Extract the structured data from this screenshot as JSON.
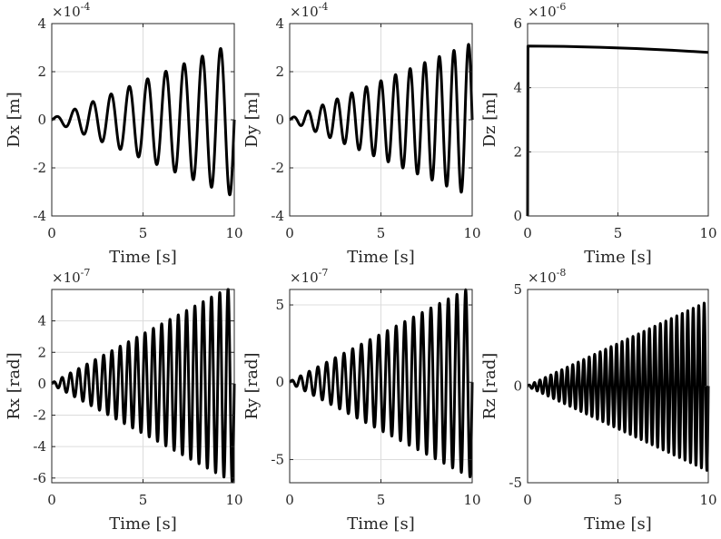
{
  "chart_data": [
    {
      "type": "line",
      "id": "dx",
      "xlabel": "Time [s]",
      "ylabel": "Dx [m]",
      "xlim": [
        0,
        10
      ],
      "ylim": [
        -4,
        4
      ],
      "y_exponent": "-4",
      "xticks": [
        0,
        5,
        10
      ],
      "yticks": [
        -4,
        -2,
        0,
        2,
        4
      ],
      "xtick_labels": [
        "0",
        "5",
        "10"
      ],
      "ytick_labels": [
        "-4",
        "-2",
        "0",
        "2",
        "4"
      ],
      "grid": true,
      "series": [
        {
          "frequency_hz": 1.0,
          "amplitude_start": 0.05,
          "amplitude_end": 3.2,
          "phase_shift_rad": 1.5708,
          "offset": 0
        }
      ]
    },
    {
      "type": "line",
      "id": "dy",
      "xlabel": "Time [s]",
      "ylabel": "Dy [m]",
      "xlim": [
        0,
        10
      ],
      "ylim": [
        -4,
        4
      ],
      "y_exponent": "-4",
      "xticks": [
        0,
        5,
        10
      ],
      "yticks": [
        -4,
        -2,
        0,
        2,
        4
      ],
      "xtick_labels": [
        "0",
        "5",
        "10"
      ],
      "ytick_labels": [
        "-4",
        "-2",
        "0",
        "2",
        "4"
      ],
      "grid": true,
      "series": [
        {
          "frequency_hz": 1.25,
          "amplitude_start": 0.05,
          "amplitude_end": 3.2,
          "phase_shift_rad": 1.5708,
          "offset": 0
        }
      ]
    },
    {
      "type": "line",
      "id": "dz",
      "xlabel": "Time [s]",
      "ylabel": "Dz [m]",
      "xlim": [
        0,
        10
      ],
      "ylim": [
        0,
        6
      ],
      "y_exponent": "-6",
      "xticks": [
        0,
        5,
        10
      ],
      "yticks": [
        0,
        2,
        4,
        6
      ],
      "xtick_labels": [
        "0",
        "5",
        "10"
      ],
      "ytick_labels": [
        "0",
        "2",
        "4",
        "6"
      ],
      "grid": true,
      "series": [
        {
          "points": [
            [
              0,
              0
            ],
            [
              0.02,
              5.3
            ],
            [
              2,
              5.29
            ],
            [
              4,
              5.26
            ],
            [
              6,
              5.22
            ],
            [
              8,
              5.17
            ],
            [
              10,
              5.1
            ]
          ]
        }
      ]
    },
    {
      "type": "line",
      "id": "rx",
      "xlabel": "Time [s]",
      "ylabel": "Rx [rad]",
      "xlim": [
        0,
        10
      ],
      "ylim": [
        -6.3,
        6
      ],
      "y_exponent": "-7",
      "xticks": [
        0,
        5,
        10
      ],
      "yticks": [
        -6,
        -4,
        -2,
        0,
        2,
        4
      ],
      "xtick_labels": [
        "0",
        "5",
        "10"
      ],
      "ytick_labels": [
        "-6",
        "-4",
        "-2",
        "0",
        "2",
        "4"
      ],
      "grid": true,
      "series": [
        {
          "frequency_hz": 2.2,
          "amplitude_start": 0.05,
          "amplitude_end": 6.3,
          "phase_shift_rad": 1.5708,
          "offset": 0
        }
      ]
    },
    {
      "type": "line",
      "id": "ry",
      "xlabel": "Time [s]",
      "ylabel": "Ry [rad]",
      "xlim": [
        0,
        10
      ],
      "ylim": [
        -6.5,
        6
      ],
      "y_exponent": "-7",
      "xticks": [
        0,
        5,
        10
      ],
      "yticks": [
        -5,
        0,
        5
      ],
      "xtick_labels": [
        "0",
        "5",
        "10"
      ],
      "ytick_labels": [
        "-5",
        "0",
        "5"
      ],
      "grid": true,
      "series": [
        {
          "frequency_hz": 2.1,
          "amplitude_start": 0.05,
          "amplitude_end": 6.2,
          "phase_shift_rad": 1.5708,
          "offset": 0
        }
      ]
    },
    {
      "type": "line",
      "id": "rz",
      "xlabel": "Time [s]",
      "ylabel": "Rz [rad]",
      "xlim": [
        0,
        10
      ],
      "ylim": [
        -5,
        5
      ],
      "y_exponent": "-8",
      "xticks": [
        0,
        5,
        10
      ],
      "yticks": [
        -5,
        0,
        5
      ],
      "xtick_labels": [
        "0",
        "5",
        "10"
      ],
      "ytick_labels": [
        "-5",
        "0",
        "5"
      ],
      "grid": true,
      "series": [
        {
          "frequency_hz": 3.3,
          "amplitude_start": 0.02,
          "amplitude_end": 4.4,
          "phase_shift_rad": 1.5708,
          "offset": 0
        }
      ]
    }
  ]
}
